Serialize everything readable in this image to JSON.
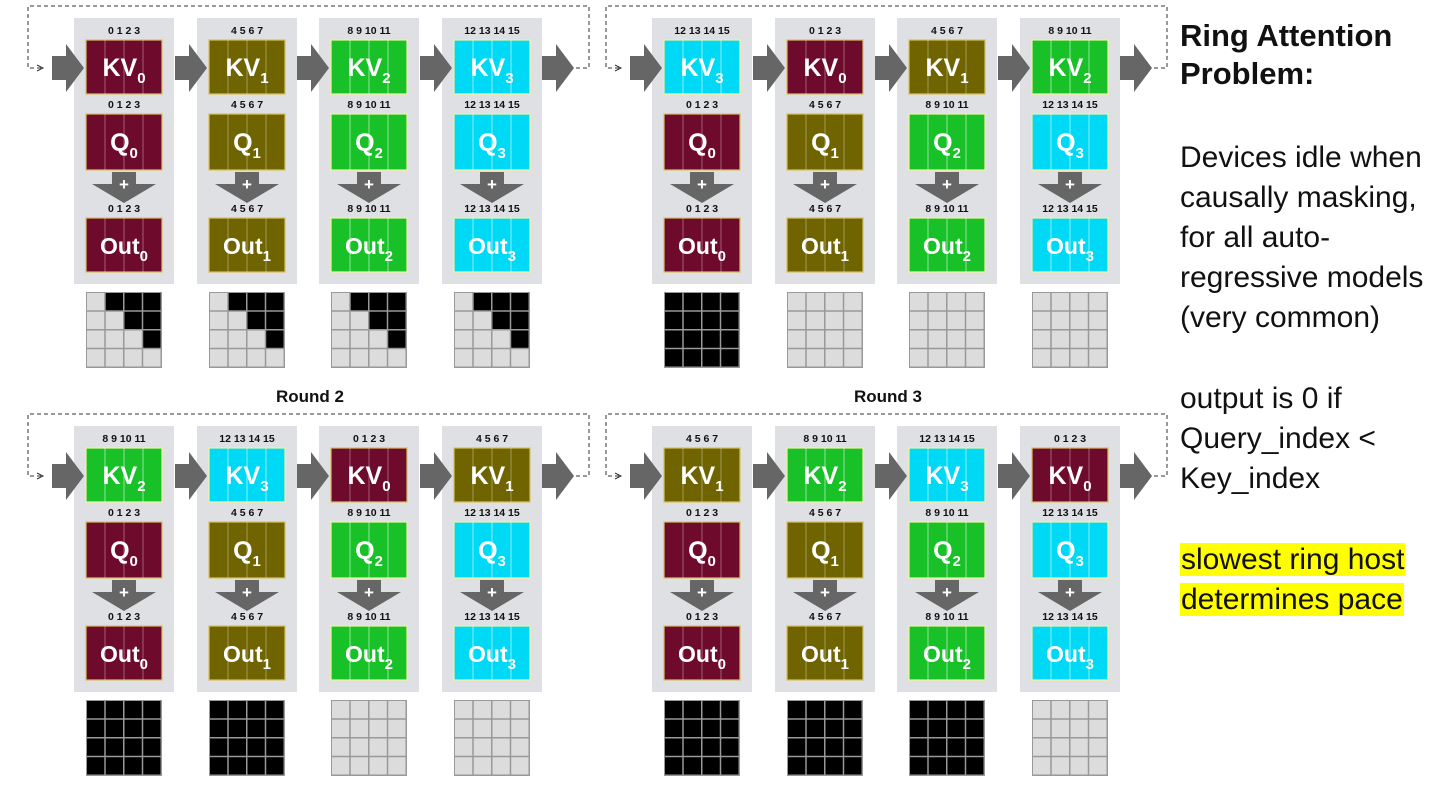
{
  "heading_lines": [
    "Ring Attention",
    "Problem:"
  ],
  "paragraph1_lines": [
    "Devices idle when",
    "causally masking,",
    "for all auto-",
    "regressive models",
    "(very common)"
  ],
  "paragraph2_lines": [
    "output is 0 if",
    "Query_index <",
    "Key_index"
  ],
  "highlight_lines": [
    "slowest ring host",
    "determines pace"
  ],
  "highlight_color": "#ffff00",
  "colors": {
    "device_bg": "#dfe0e3",
    "arrow": "#666666",
    "block0": "#6e0a2c",
    "block1": "#6f6400",
    "block2": "#17c127",
    "block3": "#00d9f5",
    "mask_filled": "#000000",
    "mask_empty": "#dcdcdc"
  },
  "index_labels": [
    "0 1 2 3",
    "4 5 6 7",
    "8 9 10 11",
    "12 13 14 15"
  ],
  "panels": [
    {
      "label": "",
      "devices": [
        {
          "kv": 0,
          "q": 0,
          "mask": [
            [
              0,
              1,
              1,
              1
            ],
            [
              0,
              0,
              1,
              1
            ],
            [
              0,
              0,
              0,
              1
            ],
            [
              0,
              0,
              0,
              0
            ]
          ]
        },
        {
          "kv": 1,
          "q": 1,
          "mask": [
            [
              0,
              1,
              1,
              1
            ],
            [
              0,
              0,
              1,
              1
            ],
            [
              0,
              0,
              0,
              1
            ],
            [
              0,
              0,
              0,
              0
            ]
          ]
        },
        {
          "kv": 2,
          "q": 2,
          "mask": [
            [
              0,
              1,
              1,
              1
            ],
            [
              0,
              0,
              1,
              1
            ],
            [
              0,
              0,
              0,
              1
            ],
            [
              0,
              0,
              0,
              0
            ]
          ]
        },
        {
          "kv": 3,
          "q": 3,
          "mask": [
            [
              0,
              1,
              1,
              1
            ],
            [
              0,
              0,
              1,
              1
            ],
            [
              0,
              0,
              0,
              1
            ],
            [
              0,
              0,
              0,
              0
            ]
          ]
        }
      ]
    },
    {
      "label": "",
      "devices": [
        {
          "kv": 3,
          "q": 0,
          "mask": [
            [
              1,
              1,
              1,
              1
            ],
            [
              1,
              1,
              1,
              1
            ],
            [
              1,
              1,
              1,
              1
            ],
            [
              1,
              1,
              1,
              1
            ]
          ]
        },
        {
          "kv": 0,
          "q": 1,
          "mask": [
            [
              0,
              0,
              0,
              0
            ],
            [
              0,
              0,
              0,
              0
            ],
            [
              0,
              0,
              0,
              0
            ],
            [
              0,
              0,
              0,
              0
            ]
          ]
        },
        {
          "kv": 1,
          "q": 2,
          "mask": [
            [
              0,
              0,
              0,
              0
            ],
            [
              0,
              0,
              0,
              0
            ],
            [
              0,
              0,
              0,
              0
            ],
            [
              0,
              0,
              0,
              0
            ]
          ]
        },
        {
          "kv": 2,
          "q": 3,
          "mask": [
            [
              0,
              0,
              0,
              0
            ],
            [
              0,
              0,
              0,
              0
            ],
            [
              0,
              0,
              0,
              0
            ],
            [
              0,
              0,
              0,
              0
            ]
          ]
        }
      ]
    },
    {
      "label": "Round 2",
      "devices": [
        {
          "kv": 2,
          "q": 0,
          "mask": [
            [
              1,
              1,
              1,
              1
            ],
            [
              1,
              1,
              1,
              1
            ],
            [
              1,
              1,
              1,
              1
            ],
            [
              1,
              1,
              1,
              1
            ]
          ]
        },
        {
          "kv": 3,
          "q": 1,
          "mask": [
            [
              1,
              1,
              1,
              1
            ],
            [
              1,
              1,
              1,
              1
            ],
            [
              1,
              1,
              1,
              1
            ],
            [
              1,
              1,
              1,
              1
            ]
          ]
        },
        {
          "kv": 0,
          "q": 2,
          "mask": [
            [
              0,
              0,
              0,
              0
            ],
            [
              0,
              0,
              0,
              0
            ],
            [
              0,
              0,
              0,
              0
            ],
            [
              0,
              0,
              0,
              0
            ]
          ]
        },
        {
          "kv": 1,
          "q": 3,
          "mask": [
            [
              0,
              0,
              0,
              0
            ],
            [
              0,
              0,
              0,
              0
            ],
            [
              0,
              0,
              0,
              0
            ],
            [
              0,
              0,
              0,
              0
            ]
          ]
        }
      ]
    },
    {
      "label": "Round 3",
      "devices": [
        {
          "kv": 1,
          "q": 0,
          "mask": [
            [
              1,
              1,
              1,
              1
            ],
            [
              1,
              1,
              1,
              1
            ],
            [
              1,
              1,
              1,
              1
            ],
            [
              1,
              1,
              1,
              1
            ]
          ]
        },
        {
          "kv": 2,
          "q": 1,
          "mask": [
            [
              1,
              1,
              1,
              1
            ],
            [
              1,
              1,
              1,
              1
            ],
            [
              1,
              1,
              1,
              1
            ],
            [
              1,
              1,
              1,
              1
            ]
          ]
        },
        {
          "kv": 3,
          "q": 2,
          "mask": [
            [
              1,
              1,
              1,
              1
            ],
            [
              1,
              1,
              1,
              1
            ],
            [
              1,
              1,
              1,
              1
            ],
            [
              1,
              1,
              1,
              1
            ]
          ]
        },
        {
          "kv": 0,
          "q": 3,
          "mask": [
            [
              0,
              0,
              0,
              0
            ],
            [
              0,
              0,
              0,
              0
            ],
            [
              0,
              0,
              0,
              0
            ],
            [
              0,
              0,
              0,
              0
            ]
          ]
        }
      ]
    }
  ]
}
